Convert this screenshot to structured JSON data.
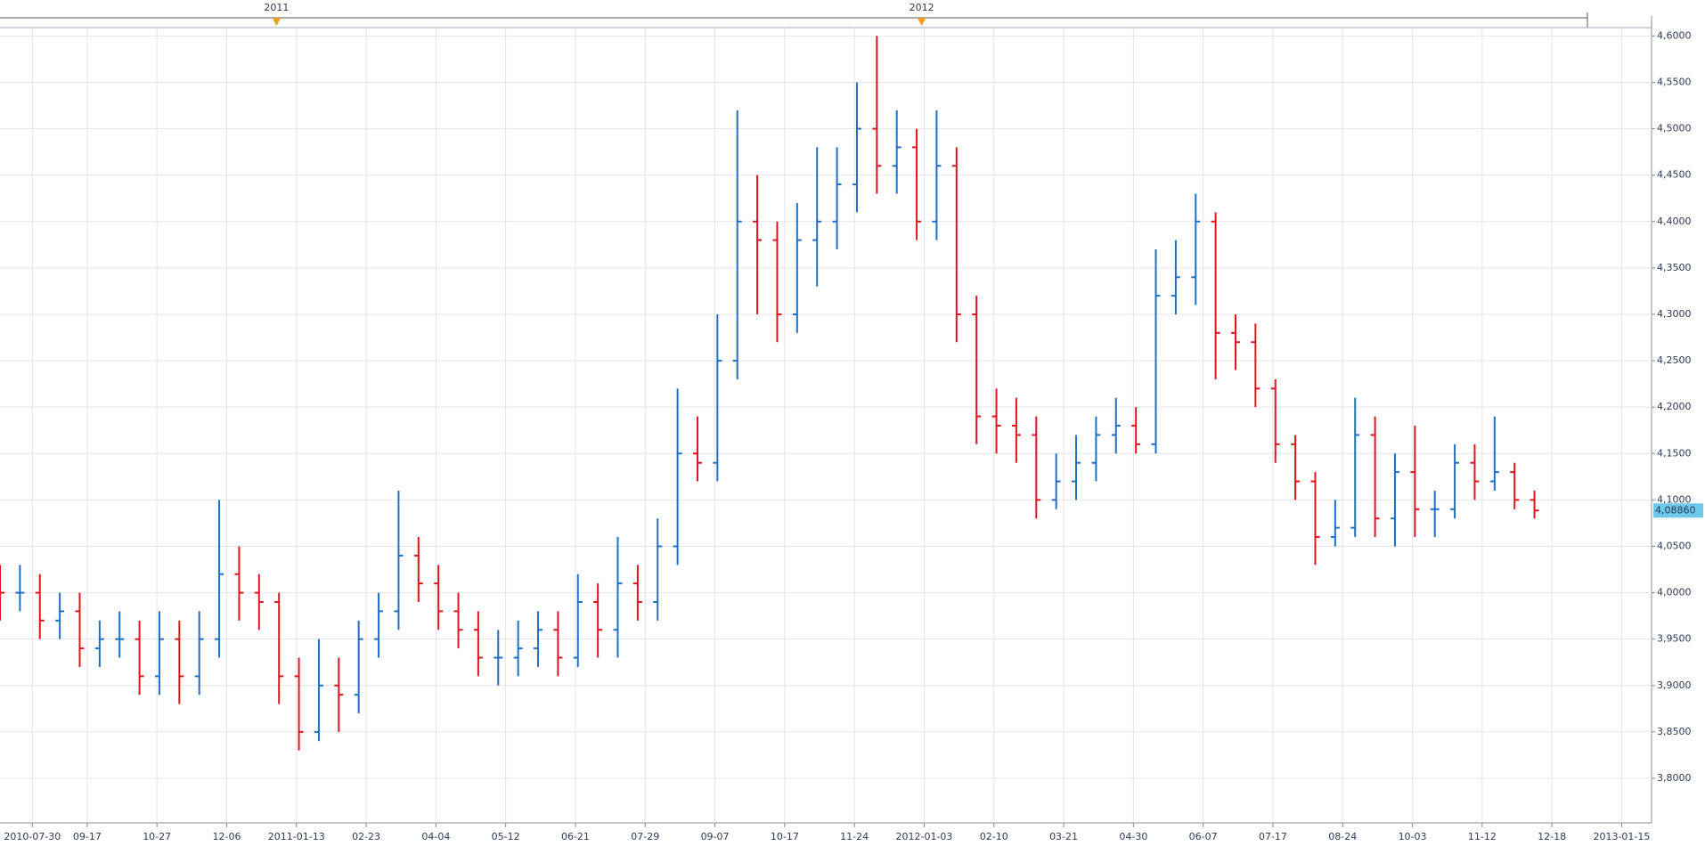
{
  "chart_data": {
    "type": "ohlc",
    "up_color": "#1f6fc5",
    "down_color": "#e0141e",
    "grid": true,
    "x": [
      0,
      8,
      16,
      24,
      32,
      40,
      48,
      56,
      64,
      72,
      80,
      88,
      96,
      104,
      112,
      120,
      128,
      136,
      144,
      152,
      160,
      168,
      176,
      184,
      192,
      200,
      208,
      216,
      224,
      232,
      240,
      248,
      256,
      264,
      272,
      280,
      288,
      296,
      304,
      312,
      320,
      328,
      336,
      344,
      352,
      360,
      368,
      376,
      384,
      392,
      400,
      408,
      416,
      424,
      432,
      440,
      448,
      456,
      464,
      472,
      480,
      488,
      496,
      504,
      512,
      520,
      528,
      536,
      544,
      552,
      560,
      568,
      576,
      584,
      592,
      600,
      608,
      616
    ],
    "open": [
      4.01,
      4.0,
      4.0,
      3.97,
      3.98,
      3.94,
      3.95,
      3.95,
      3.91,
      3.95,
      3.91,
      3.95,
      4.02,
      4.0,
      3.99,
      3.91,
      3.85,
      3.9,
      3.89,
      3.95,
      3.98,
      4.04,
      4.01,
      3.98,
      3.96,
      3.93,
      3.93,
      3.94,
      3.96,
      3.93,
      3.99,
      3.96,
      4.01,
      3.99,
      4.05,
      4.15,
      4.14,
      4.25,
      4.4,
      4.38,
      4.3,
      4.38,
      4.4,
      4.44,
      4.5,
      4.46,
      4.48,
      4.4,
      4.46,
      4.3,
      4.19,
      4.18,
      4.17,
      4.1,
      4.12,
      4.14,
      4.17,
      4.18,
      4.16,
      4.32,
      4.34,
      4.4,
      4.28,
      4.27,
      4.22,
      4.16,
      4.12,
      4.06,
      4.07,
      4.17,
      4.08,
      4.13,
      4.09,
      4.09,
      4.14,
      4.12,
      4.13,
      4.1
    ],
    "high": [
      4.03,
      4.03,
      4.02,
      4.0,
      4.0,
      3.97,
      3.98,
      3.97,
      3.98,
      3.97,
      3.98,
      4.1,
      4.05,
      4.02,
      4.0,
      3.93,
      3.95,
      3.93,
      3.97,
      4.0,
      4.11,
      4.06,
      4.03,
      4.0,
      3.98,
      3.96,
      3.97,
      3.98,
      3.98,
      4.02,
      4.01,
      4.06,
      4.03,
      4.08,
      4.22,
      4.19,
      4.3,
      4.52,
      4.45,
      4.4,
      4.42,
      4.48,
      4.48,
      4.55,
      4.6,
      4.52,
      4.5,
      4.52,
      4.48,
      4.32,
      4.22,
      4.21,
      4.19,
      4.15,
      4.17,
      4.19,
      4.21,
      4.2,
      4.37,
      4.38,
      4.43,
      4.41,
      4.3,
      4.29,
      4.23,
      4.17,
      4.13,
      4.1,
      4.21,
      4.19,
      4.15,
      4.18,
      4.11,
      4.16,
      4.16,
      4.19,
      4.14,
      4.11
    ],
    "low": [
      3.97,
      3.98,
      3.95,
      3.95,
      3.92,
      3.92,
      3.93,
      3.89,
      3.89,
      3.88,
      3.89,
      3.93,
      3.97,
      3.96,
      3.88,
      3.83,
      3.84,
      3.85,
      3.87,
      3.93,
      3.96,
      3.99,
      3.96,
      3.94,
      3.91,
      3.9,
      3.91,
      3.92,
      3.91,
      3.92,
      3.93,
      3.93,
      3.97,
      3.97,
      4.03,
      4.12,
      4.12,
      4.23,
      4.3,
      4.27,
      4.28,
      4.33,
      4.37,
      4.41,
      4.43,
      4.43,
      4.38,
      4.38,
      4.27,
      4.16,
      4.15,
      4.14,
      4.08,
      4.09,
      4.1,
      4.12,
      4.15,
      4.15,
      4.15,
      4.3,
      4.31,
      4.23,
      4.24,
      4.2,
      4.14,
      4.1,
      4.03,
      4.05,
      4.06,
      4.06,
      4.05,
      4.06,
      4.06,
      4.08,
      4.1,
      4.11,
      4.09,
      4.08
    ],
    "close": [
      4.0,
      4.0,
      3.97,
      3.98,
      3.94,
      3.95,
      3.95,
      3.91,
      3.95,
      3.91,
      3.95,
      4.02,
      4.0,
      3.99,
      3.91,
      3.85,
      3.9,
      3.89,
      3.95,
      3.98,
      4.04,
      4.01,
      3.98,
      3.96,
      3.93,
      3.93,
      3.94,
      3.96,
      3.93,
      3.99,
      3.96,
      4.01,
      3.99,
      4.05,
      4.15,
      4.14,
      4.25,
      4.4,
      4.38,
      4.3,
      4.38,
      4.4,
      4.44,
      4.5,
      4.46,
      4.48,
      4.4,
      4.46,
      4.3,
      4.19,
      4.18,
      4.17,
      4.1,
      4.12,
      4.14,
      4.17,
      4.18,
      4.16,
      4.32,
      4.34,
      4.4,
      4.28,
      4.27,
      4.22,
      4.16,
      4.12,
      4.06,
      4.07,
      4.17,
      4.08,
      4.13,
      4.09,
      4.09,
      4.14,
      4.12,
      4.13,
      4.1,
      4.0886
    ],
    "last_price": {
      "value": 4.0886,
      "label": "4,08860"
    },
    "xlim": [
      0,
      663
    ],
    "ylim": [
      3.752,
      4.609
    ],
    "xticks": [
      {
        "value": 13,
        "label": "2010-07-30"
      },
      {
        "value": 35,
        "label": "09-17"
      },
      {
        "value": 63,
        "label": "10-27"
      },
      {
        "value": 91,
        "label": "12-06"
      },
      {
        "value": 119,
        "label": "2011-01-13"
      },
      {
        "value": 147,
        "label": "02-23"
      },
      {
        "value": 175,
        "label": "04-04"
      },
      {
        "value": 203,
        "label": "05-12"
      },
      {
        "value": 231,
        "label": "06-21"
      },
      {
        "value": 259,
        "label": "07-29"
      },
      {
        "value": 287,
        "label": "09-07"
      },
      {
        "value": 315,
        "label": "10-17"
      },
      {
        "value": 343,
        "label": "11-24"
      },
      {
        "value": 371,
        "label": "2012-01-03"
      },
      {
        "value": 399,
        "label": "02-10"
      },
      {
        "value": 427,
        "label": "03-21"
      },
      {
        "value": 455,
        "label": "04-30"
      },
      {
        "value": 483,
        "label": "06-07"
      },
      {
        "value": 511,
        "label": "07-17"
      },
      {
        "value": 539,
        "label": "08-24"
      },
      {
        "value": 567,
        "label": "10-03"
      },
      {
        "value": 595,
        "label": "11-12"
      },
      {
        "value": 623,
        "label": "12-18"
      },
      {
        "value": 651,
        "label": "2013-01-15"
      }
    ],
    "x2ticks": [
      {
        "value": 111,
        "label": "2011"
      },
      {
        "value": 370,
        "label": "2012"
      }
    ],
    "yticks": [
      {
        "value": 3.8,
        "label": "3,8000"
      },
      {
        "value": 3.85,
        "label": "3,8500"
      },
      {
        "value": 3.9,
        "label": "3,9000"
      },
      {
        "value": 3.95,
        "label": "3,9500"
      },
      {
        "value": 4.0,
        "label": "4,0000"
      },
      {
        "value": 4.05,
        "label": "4,0500"
      },
      {
        "value": 4.1,
        "label": "4,1000"
      },
      {
        "value": 4.15,
        "label": "4,1500"
      },
      {
        "value": 4.2,
        "label": "4,2000"
      },
      {
        "value": 4.25,
        "label": "4,2500"
      },
      {
        "value": 4.3,
        "label": "4,3000"
      },
      {
        "value": 4.35,
        "label": "4,3500"
      },
      {
        "value": 4.4,
        "label": "4,4000"
      },
      {
        "value": 4.45,
        "label": "4,4500"
      },
      {
        "value": 4.5,
        "label": "4,5000"
      },
      {
        "value": 4.55,
        "label": "4,5500"
      },
      {
        "value": 4.6,
        "label": "4,6000"
      }
    ]
  }
}
